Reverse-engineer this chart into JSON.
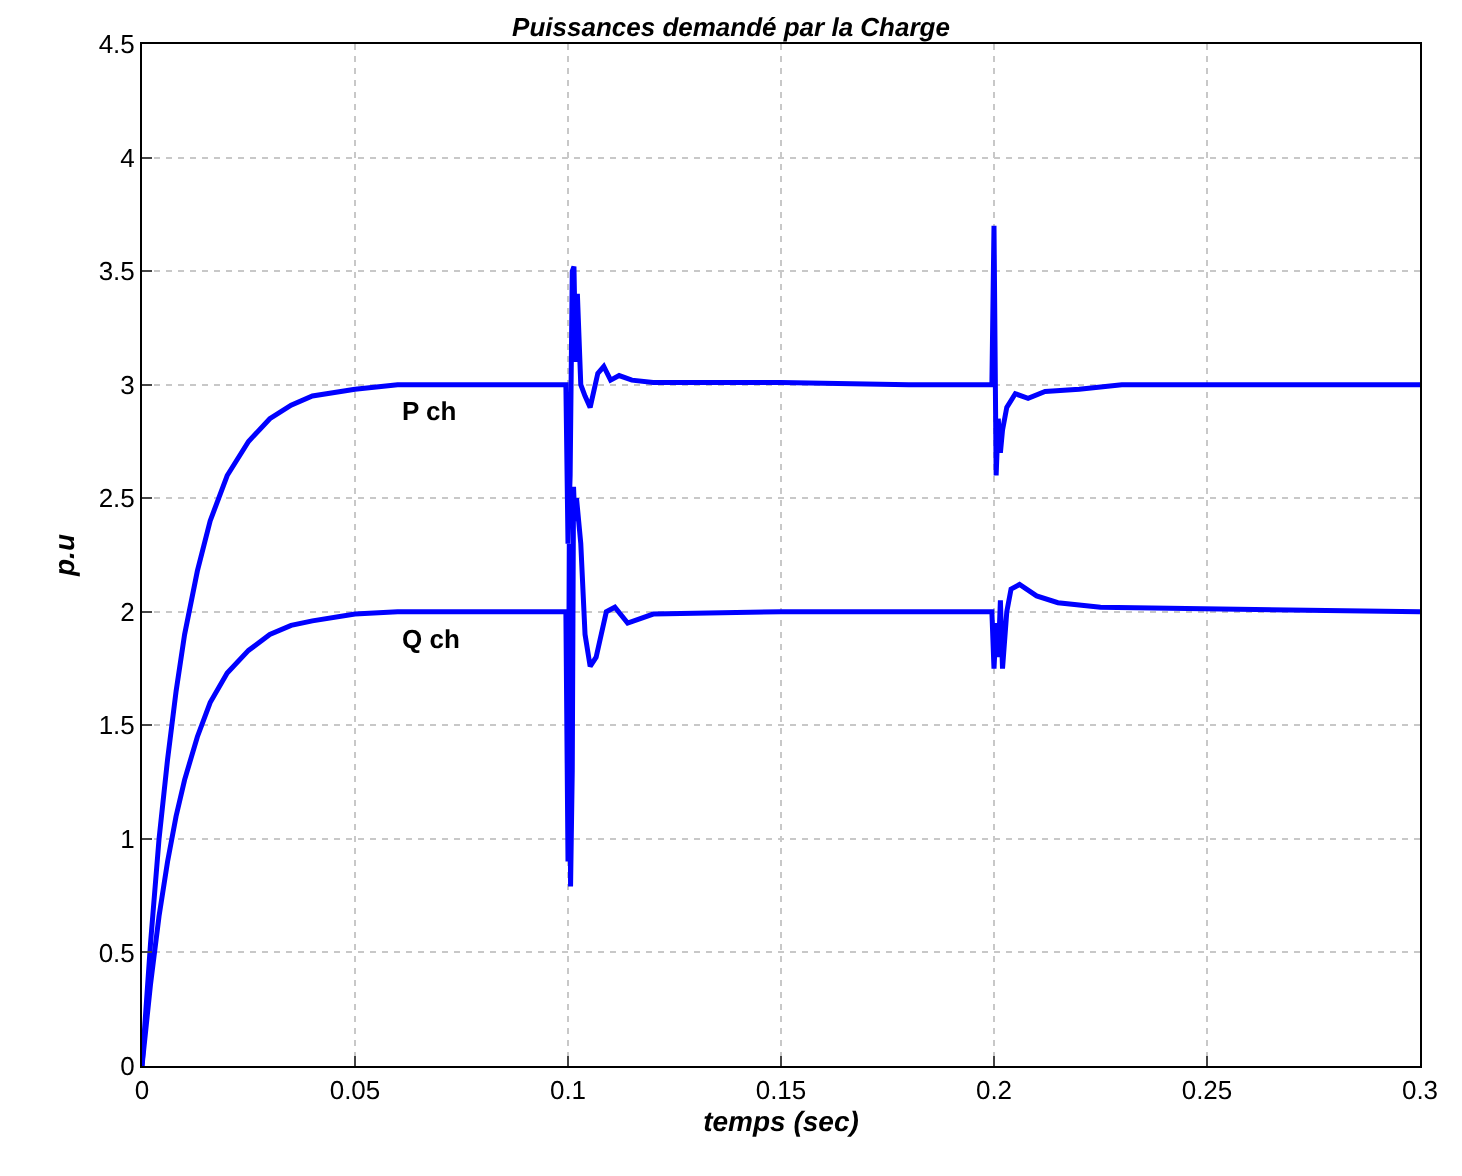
{
  "chart_data": {
    "type": "line",
    "title": "Puissances demandé par la Charge",
    "xlabel": "temps (sec)",
    "ylabel": "p.u",
    "xlim": [
      0,
      0.3
    ],
    "ylim": [
      0,
      4.5
    ],
    "xticks": [
      0,
      0.05,
      0.1,
      0.15,
      0.2,
      0.25,
      0.3
    ],
    "yticks": [
      0,
      0.5,
      1,
      1.5,
      2,
      2.5,
      3,
      3.5,
      4,
      4.5
    ],
    "grid": true,
    "line_style": "solid",
    "series": [
      {
        "name": "P ch",
        "color": "#0000ff",
        "x": [
          0,
          0.002,
          0.004,
          0.006,
          0.008,
          0.01,
          0.013,
          0.016,
          0.02,
          0.025,
          0.03,
          0.035,
          0.04,
          0.05,
          0.06,
          0.0995,
          0.1,
          0.1005,
          0.101,
          0.1014,
          0.1018,
          0.1022,
          0.103,
          0.104,
          0.1052,
          0.107,
          0.1084,
          0.11,
          0.112,
          0.115,
          0.12,
          0.15,
          0.18,
          0.1995,
          0.2,
          0.2005,
          0.201,
          0.2015,
          0.202,
          0.203,
          0.205,
          0.208,
          0.212,
          0.22,
          0.23,
          0.3
        ],
        "values": [
          0,
          0.54,
          1.0,
          1.35,
          1.65,
          1.9,
          2.18,
          2.4,
          2.6,
          2.75,
          2.85,
          2.91,
          2.95,
          2.98,
          3.0,
          3.0,
          2.3,
          2.6,
          3.5,
          3.52,
          3.1,
          3.4,
          3.0,
          2.95,
          2.9,
          3.05,
          3.08,
          3.02,
          3.04,
          3.02,
          3.01,
          3.01,
          3.0,
          3.0,
          3.7,
          2.6,
          2.85,
          2.7,
          2.8,
          2.9,
          2.96,
          2.94,
          2.97,
          2.98,
          3.0,
          3.0
        ]
      },
      {
        "name": "Q ch",
        "color": "#0000ff",
        "x": [
          0,
          0.002,
          0.004,
          0.006,
          0.008,
          0.01,
          0.013,
          0.016,
          0.02,
          0.025,
          0.03,
          0.035,
          0.04,
          0.05,
          0.06,
          0.0995,
          0.1,
          0.1003,
          0.1006,
          0.101,
          0.1013,
          0.1016,
          0.102,
          0.103,
          0.104,
          0.1052,
          0.1066,
          0.109,
          0.111,
          0.114,
          0.12,
          0.15,
          0.1995,
          0.2,
          0.2005,
          0.201,
          0.2015,
          0.202,
          0.203,
          0.204,
          0.206,
          0.21,
          0.215,
          0.225,
          0.3
        ],
        "values": [
          0,
          0.36,
          0.66,
          0.9,
          1.1,
          1.26,
          1.45,
          1.6,
          1.73,
          1.83,
          1.9,
          1.94,
          1.96,
          1.99,
          2.0,
          2.0,
          0.9,
          2.3,
          0.79,
          1.3,
          2.55,
          2.4,
          2.5,
          2.3,
          1.9,
          1.76,
          1.8,
          2.0,
          2.02,
          1.95,
          1.99,
          2.0,
          2.0,
          1.75,
          1.95,
          1.8,
          2.05,
          1.75,
          2.0,
          2.1,
          2.12,
          2.07,
          2.04,
          2.02,
          2.0
        ]
      }
    ],
    "legend": false
  }
}
